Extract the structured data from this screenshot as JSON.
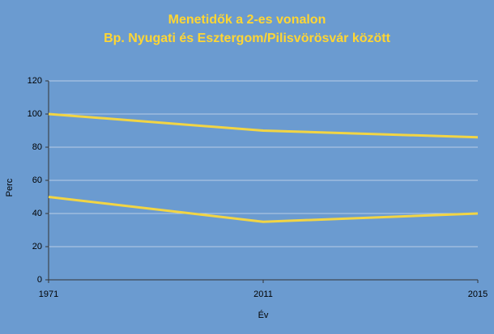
{
  "chart_data": {
    "type": "line",
    "title": "Menetidők a 2-es vonalon",
    "subtitle": "Bp. Nyugati és Esztergom/Pilisvörösvár között",
    "x_label": "Év",
    "y_label": "Perc",
    "categories": [
      "1971",
      "2011",
      "2015"
    ],
    "series": [
      {
        "color": "#f2d544",
        "values": [
          100,
          90,
          86
        ]
      },
      {
        "color": "#f2d544",
        "values": [
          50,
          35,
          40
        ]
      }
    ],
    "ylim": [
      0,
      120
    ],
    "yticks": [
      0,
      20,
      40,
      60,
      80,
      100,
      120
    ],
    "grid": true
  }
}
